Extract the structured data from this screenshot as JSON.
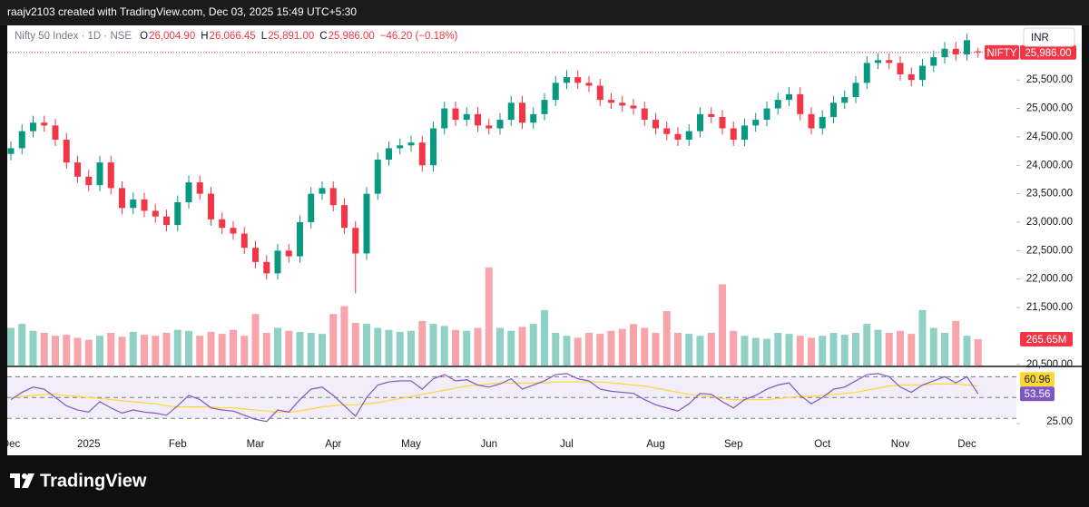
{
  "chart_data": {
    "type": "candlestick",
    "header": "raajv2103 created with TradingView.com, Dec 03, 2025 15:49 UTC+5:30",
    "title": "Nifty 50 Index · 1D · NSE",
    "ohlc_legend": [
      {
        "key": "O",
        "label": "26,004.90"
      },
      {
        "key": "H",
        "label": "26,066.45"
      },
      {
        "key": "L",
        "label": "25,891.00"
      },
      {
        "key": "C",
        "label": "25,986.00"
      }
    ],
    "change": "−46.20 (−0.18%)",
    "currency": "INR",
    "symbol_tag": "NIFTY",
    "last_price_label": "25,986.00",
    "brand": "TradingView",
    "up_color": "#089981",
    "down_color": "#f23645",
    "categories": [
      "Dec",
      null,
      null,
      null,
      null,
      null,
      null,
      "2025",
      null,
      null,
      null,
      null,
      null,
      null,
      null,
      "Feb",
      null,
      null,
      null,
      null,
      null,
      null,
      "Mar",
      null,
      null,
      null,
      null,
      null,
      null,
      "Apr",
      null,
      null,
      null,
      null,
      null,
      null,
      "May",
      null,
      null,
      null,
      null,
      null,
      null,
      "Jun",
      null,
      null,
      null,
      null,
      null,
      null,
      "Jul",
      null,
      null,
      null,
      null,
      null,
      null,
      null,
      "Aug",
      null,
      null,
      null,
      null,
      null,
      null,
      "Sep",
      null,
      null,
      null,
      null,
      null,
      null,
      null,
      "Oct",
      null,
      null,
      null,
      null,
      null,
      null,
      "Nov",
      null,
      null,
      null,
      null,
      null,
      "Dec",
      null
    ],
    "open": [
      24200,
      24300,
      24600,
      24750,
      24700,
      24450,
      24050,
      23800,
      23650,
      24050,
      23600,
      23250,
      23400,
      23200,
      23100,
      22950,
      23350,
      23700,
      23500,
      23050,
      22900,
      22800,
      22550,
      22300,
      22100,
      22500,
      22400,
      23000,
      23500,
      23600,
      23300,
      22900,
      22450,
      23500,
      24100,
      24300,
      24350,
      24400,
      24000,
      24650,
      25000,
      24800,
      24900,
      24700,
      24650,
      24800,
      25100,
      24750,
      24900,
      25150,
      25450,
      25550,
      25450,
      25400,
      25150,
      25100,
      25050,
      25000,
      24800,
      24650,
      24550,
      24450,
      24600,
      24900,
      24850,
      24650,
      24450,
      24700,
      24800,
      25000,
      25150,
      25250,
      24900,
      24650,
      24850,
      25100,
      25200,
      25450,
      25800,
      25850,
      25800,
      25600,
      25500,
      25750,
      25900,
      26050,
      25950,
      26004.9
    ],
    "high": [
      24420,
      24720,
      24870,
      24870,
      24820,
      24570,
      24170,
      23920,
      24170,
      24170,
      23720,
      23520,
      23520,
      23320,
      23220,
      23470,
      23820,
      23820,
      23620,
      23170,
      23020,
      22920,
      22670,
      22420,
      22620,
      22620,
      23120,
      23620,
      23720,
      23720,
      23420,
      23020,
      23620,
      24220,
      24420,
      24470,
      24520,
      24520,
      24770,
      25120,
      25120,
      25020,
      25020,
      24820,
      24920,
      25220,
      25220,
      25020,
      25270,
      25570,
      25670,
      25670,
      25570,
      25520,
      25270,
      25220,
      25170,
      25120,
      24920,
      24770,
      24670,
      24720,
      25020,
      25020,
      24970,
      24770,
      24820,
      24920,
      25120,
      25270,
      25370,
      25370,
      25020,
      24970,
      25220,
      25320,
      25570,
      25920,
      25970,
      25970,
      25920,
      25720,
      25870,
      26020,
      26170,
      26170,
      26320,
      26066.45
    ],
    "low": [
      24090,
      24190,
      24490,
      24590,
      24340,
      23940,
      23690,
      23540,
      23540,
      23490,
      23140,
      23140,
      23090,
      22990,
      22840,
      22840,
      23240,
      23390,
      22940,
      22790,
      22690,
      22440,
      22190,
      21990,
      21990,
      22290,
      22290,
      22890,
      23390,
      23190,
      22790,
      21750,
      22340,
      23390,
      23990,
      24190,
      24240,
      23890,
      23890,
      24540,
      24690,
      24690,
      24590,
      24540,
      24540,
      24690,
      24640,
      24640,
      24790,
      25040,
      25340,
      25340,
      25290,
      25040,
      24990,
      24940,
      24890,
      24690,
      24540,
      24440,
      24340,
      24340,
      24490,
      24740,
      24540,
      24340,
      24340,
      24590,
      24690,
      24890,
      25040,
      24790,
      24540,
      24540,
      24740,
      24990,
      25090,
      25340,
      25690,
      25690,
      25490,
      25390,
      25390,
      25640,
      25790,
      25840,
      25840,
      25891
    ],
    "close": [
      24300,
      24600,
      24750,
      24700,
      24450,
      24050,
      23800,
      23650,
      24050,
      23600,
      23250,
      23400,
      23200,
      23100,
      22950,
      23350,
      23700,
      23500,
      23050,
      22900,
      22800,
      22550,
      22300,
      22100,
      22500,
      22400,
      23000,
      23500,
      23600,
      23300,
      22900,
      22450,
      23500,
      24100,
      24300,
      24350,
      24400,
      24000,
      24650,
      25000,
      24800,
      24900,
      24700,
      24650,
      24800,
      25100,
      24750,
      24900,
      25150,
      25450,
      25550,
      25450,
      25400,
      25150,
      25100,
      25050,
      25000,
      24800,
      24650,
      24550,
      24450,
      24600,
      24900,
      24850,
      24650,
      24450,
      24700,
      24800,
      25000,
      25150,
      25250,
      24900,
      24650,
      24850,
      25100,
      25200,
      25450,
      25800,
      25850,
      25800,
      25600,
      25500,
      25750,
      25900,
      26050,
      25950,
      26200,
      25986
    ],
    "ylim": [
      20480,
      26460
    ],
    "yticks": [
      {
        "value": 25500,
        "label": "25,500.00"
      },
      {
        "value": 25000,
        "label": "25,000.00"
      },
      {
        "value": 24500,
        "label": "24,500.00"
      },
      {
        "value": 24000,
        "label": "24,000.00"
      },
      {
        "value": 23500,
        "label": "23,500.00"
      },
      {
        "value": 23000,
        "label": "23,000.00"
      },
      {
        "value": 22500,
        "label": "22,500.00"
      },
      {
        "value": 22000,
        "label": "22,000.00"
      },
      {
        "value": 21500,
        "label": "21,500.00"
      },
      {
        "value": 20500,
        "label": "20,500.00"
      }
    ],
    "volume": {
      "values": [
        380,
        420,
        350,
        330,
        300,
        310,
        280,
        260,
        300,
        330,
        290,
        340,
        310,
        300,
        330,
        360,
        350,
        300,
        340,
        320,
        360,
        300,
        520,
        330,
        380,
        350,
        340,
        330,
        320,
        520,
        600,
        430,
        420,
        380,
        360,
        340,
        350,
        450,
        420,
        400,
        360,
        350,
        380,
        990,
        380,
        350,
        390,
        420,
        560,
        330,
        300,
        280,
        330,
        320,
        350,
        370,
        420,
        380,
        330,
        550,
        330,
        320,
        300,
        330,
        820,
        350,
        300,
        280,
        270,
        330,
        320,
        300,
        280,
        300,
        330,
        310,
        330,
        420,
        360,
        330,
        350,
        320,
        560,
        380,
        330,
        450,
        300,
        265.65
      ],
      "ylim": [
        0,
        1200
      ],
      "last_label": "265.65M"
    },
    "rsi": {
      "color": "#7e57c2",
      "values": [
        48,
        55,
        60,
        58,
        50,
        42,
        38,
        36,
        46,
        40,
        35,
        38,
        36,
        35,
        33,
        42,
        52,
        48,
        40,
        38,
        37,
        33,
        29,
        27,
        38,
        36,
        48,
        58,
        60,
        52,
        42,
        32,
        50,
        62,
        65,
        66,
        66,
        58,
        68,
        72,
        66,
        67,
        62,
        60,
        63,
        68,
        58,
        62,
        66,
        72,
        73,
        68,
        66,
        58,
        56,
        55,
        54,
        48,
        43,
        40,
        37,
        44,
        54,
        53,
        46,
        40,
        48,
        52,
        58,
        62,
        64,
        52,
        44,
        50,
        58,
        60,
        66,
        72,
        73,
        70,
        60,
        55,
        62,
        66,
        70,
        64,
        70,
        53.56
      ],
      "ma": {
        "color": "#fdd835",
        "values": [
          50,
          51,
          52,
          53,
          53,
          52,
          51,
          50,
          49,
          48,
          47,
          46,
          45,
          44,
          42,
          41,
          41,
          41,
          41,
          40,
          40,
          39,
          38,
          37,
          36,
          36,
          37,
          39,
          41,
          42,
          43,
          43,
          44,
          45,
          47,
          49,
          51,
          53,
          55,
          57,
          59,
          61,
          62,
          63,
          64,
          64,
          64,
          64,
          64,
          65,
          65,
          65,
          65,
          65,
          64,
          63,
          62,
          61,
          59,
          57,
          55,
          53,
          52,
          51,
          49,
          48,
          48,
          48,
          48,
          49,
          50,
          51,
          51,
          52,
          53,
          54,
          55,
          57,
          59,
          61,
          62,
          62,
          62,
          63,
          63,
          63,
          62,
          60.96
        ]
      },
      "ylim": [
        18,
        79
      ],
      "yticks": [
        {
          "value": 25,
          "label": "25.00"
        }
      ],
      "levels": [
        70,
        50,
        30
      ]
    }
  }
}
